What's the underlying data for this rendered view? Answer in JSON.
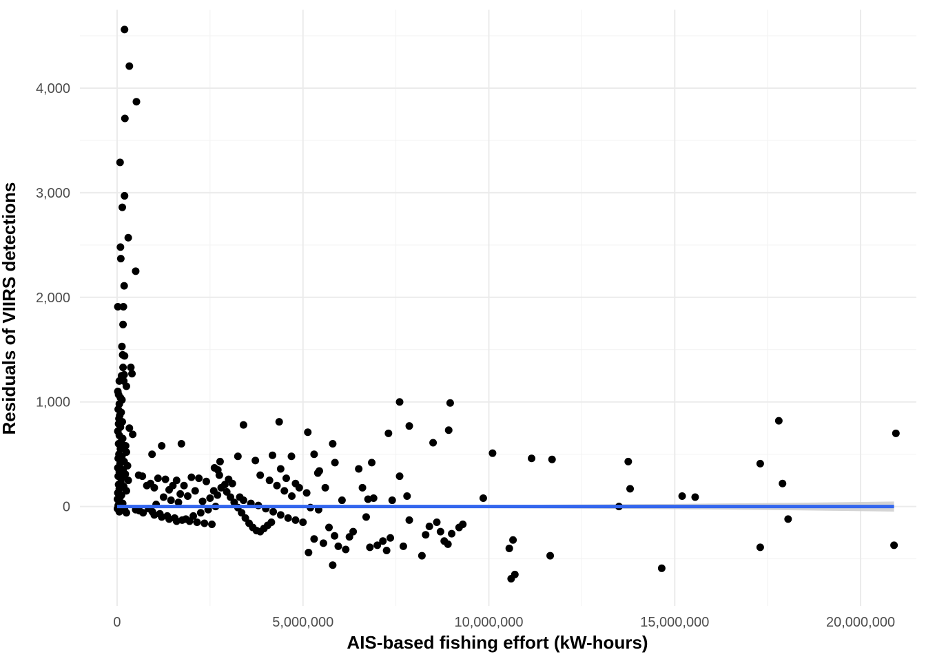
{
  "chart_data": {
    "type": "scatter",
    "title": "",
    "xlabel": "AIS-based fishing effort (kW-hours)",
    "ylabel": "Residuals of VIIRS detections",
    "xlim": [
      -1000000,
      21500000
    ],
    "ylim": [
      -950,
      4750
    ],
    "x_ticks": [
      0,
      5000000,
      10000000,
      15000000,
      20000000
    ],
    "x_tick_labels": [
      "0",
      "5,000,000",
      "10,000,000",
      "15,000,000",
      "20,000,000"
    ],
    "y_ticks": [
      0,
      1000,
      2000,
      3000,
      4000
    ],
    "y_tick_labels": [
      "0",
      "1,000",
      "2,000",
      "3,000",
      "4,000"
    ],
    "grid": true,
    "point_color": "#000000",
    "fit_line_color": "#3366ee",
    "fit_band_color": "#cccccc",
    "fit_line": {
      "x": [
        0,
        20900000
      ],
      "y": [
        0,
        0
      ]
    },
    "fit_band": {
      "x": [
        0,
        5000000,
        10000000,
        15000000,
        18000000,
        20900000
      ],
      "upper": [
        5,
        8,
        15,
        25,
        35,
        48
      ],
      "lower": [
        -5,
        -8,
        -15,
        -25,
        -35,
        -48
      ]
    },
    "points": [
      [
        200000,
        4560
      ],
      [
        330000,
        4210
      ],
      [
        520000,
        3870
      ],
      [
        210000,
        3710
      ],
      [
        80000,
        3290
      ],
      [
        200000,
        2970
      ],
      [
        140000,
        2860
      ],
      [
        300000,
        2570
      ],
      [
        90000,
        2480
      ],
      [
        100000,
        2370
      ],
      [
        500000,
        2250
      ],
      [
        190000,
        2110
      ],
      [
        20000,
        1910
      ],
      [
        170000,
        1910
      ],
      [
        160000,
        1740
      ],
      [
        130000,
        1530
      ],
      [
        150000,
        1450
      ],
      [
        200000,
        1440
      ],
      [
        370000,
        1330
      ],
      [
        160000,
        1330
      ],
      [
        400000,
        1270
      ],
      [
        190000,
        1260
      ],
      [
        120000,
        1250
      ],
      [
        180000,
        1200
      ],
      [
        60000,
        1200
      ],
      [
        250000,
        1150
      ],
      [
        20000,
        1100
      ],
      [
        40000,
        1070
      ],
      [
        90000,
        1040
      ],
      [
        130000,
        1020
      ],
      [
        60000,
        980
      ],
      [
        30000,
        930
      ],
      [
        110000,
        900
      ],
      [
        70000,
        870
      ],
      [
        50000,
        840
      ],
      [
        140000,
        810
      ],
      [
        40000,
        790
      ],
      [
        90000,
        760
      ],
      [
        330000,
        750
      ],
      [
        20000,
        720
      ],
      [
        420000,
        690
      ],
      [
        60000,
        680
      ],
      [
        150000,
        650
      ],
      [
        110000,
        620
      ],
      [
        40000,
        600
      ],
      [
        230000,
        580
      ],
      [
        90000,
        550
      ],
      [
        250000,
        520
      ],
      [
        50000,
        500
      ],
      [
        130000,
        480
      ],
      [
        30000,
        460
      ],
      [
        190000,
        430
      ],
      [
        80000,
        410
      ],
      [
        280000,
        390
      ],
      [
        20000,
        370
      ],
      [
        160000,
        350
      ],
      [
        60000,
        330
      ],
      [
        220000,
        310
      ],
      [
        30000,
        290
      ],
      [
        120000,
        270
      ],
      [
        300000,
        250
      ],
      [
        100000,
        230
      ],
      [
        40000,
        210
      ],
      [
        180000,
        190
      ],
      [
        60000,
        170
      ],
      [
        250000,
        150
      ],
      [
        20000,
        130
      ],
      [
        120000,
        110
      ],
      [
        80000,
        90
      ],
      [
        10000,
        70
      ],
      [
        50000,
        50
      ],
      [
        150000,
        30
      ],
      [
        30000,
        10
      ],
      [
        100000,
        -10
      ],
      [
        200000,
        -30
      ],
      [
        60000,
        -50
      ],
      [
        10000,
        -20
      ],
      [
        250000,
        -60
      ],
      [
        1200000,
        580
      ],
      [
        1730000,
        600
      ],
      [
        940000,
        500
      ],
      [
        580000,
        300
      ],
      [
        680000,
        290
      ],
      [
        1100000,
        270
      ],
      [
        1300000,
        260
      ],
      [
        900000,
        220
      ],
      [
        800000,
        200
      ],
      [
        1000000,
        180
      ],
      [
        1500000,
        200
      ],
      [
        1400000,
        160
      ],
      [
        1600000,
        250
      ],
      [
        1800000,
        200
      ],
      [
        2000000,
        280
      ],
      [
        2200000,
        270
      ],
      [
        2400000,
        240
      ],
      [
        2100000,
        150
      ],
      [
        1700000,
        120
      ],
      [
        1900000,
        100
      ],
      [
        1250000,
        90
      ],
      [
        1450000,
        60
      ],
      [
        1650000,
        40
      ],
      [
        1050000,
        20
      ],
      [
        850000,
        -20
      ],
      [
        950000,
        -50
      ],
      [
        1150000,
        -70
      ],
      [
        1350000,
        -90
      ],
      [
        1550000,
        -110
      ],
      [
        1750000,
        -130
      ],
      [
        1950000,
        -140
      ],
      [
        2150000,
        -150
      ],
      [
        2350000,
        -160
      ],
      [
        2550000,
        -170
      ],
      [
        700000,
        -60
      ],
      [
        600000,
        -40
      ],
      [
        500000,
        -30
      ],
      [
        1000000,
        -80
      ],
      [
        1200000,
        -100
      ],
      [
        1400000,
        -120
      ],
      [
        1600000,
        -140
      ],
      [
        1850000,
        -120
      ],
      [
        2050000,
        -90
      ],
      [
        2250000,
        -60
      ],
      [
        2450000,
        -30
      ],
      [
        2650000,
        0
      ],
      [
        2300000,
        50
      ],
      [
        2500000,
        80
      ],
      [
        2700000,
        110
      ],
      [
        2600000,
        150
      ],
      [
        2800000,
        180
      ],
      [
        2900000,
        210
      ],
      [
        2750000,
        300
      ],
      [
        2620000,
        370
      ],
      [
        2710000,
        350
      ],
      [
        2770000,
        430
      ],
      [
        3000000,
        260
      ],
      [
        3100000,
        220
      ],
      [
        2950000,
        140
      ],
      [
        3050000,
        90
      ],
      [
        3150000,
        40
      ],
      [
        3250000,
        -10
      ],
      [
        3350000,
        -60
      ],
      [
        3450000,
        -110
      ],
      [
        3550000,
        -160
      ],
      [
        3650000,
        -200
      ],
      [
        3750000,
        -230
      ],
      [
        3850000,
        -240
      ],
      [
        3950000,
        -210
      ],
      [
        4050000,
        -180
      ],
      [
        4150000,
        -150
      ],
      [
        3300000,
        90
      ],
      [
        3400000,
        60
      ],
      [
        3600000,
        30
      ],
      [
        3800000,
        10
      ],
      [
        4000000,
        -20
      ],
      [
        4200000,
        -50
      ],
      [
        4400000,
        -80
      ],
      [
        4600000,
        -110
      ],
      [
        4800000,
        -130
      ],
      [
        5000000,
        -150
      ],
      [
        3250000,
        480
      ],
      [
        3400000,
        780
      ],
      [
        3720000,
        440
      ],
      [
        4180000,
        490
      ],
      [
        4360000,
        810
      ],
      [
        4400000,
        360
      ],
      [
        4690000,
        480
      ],
      [
        3850000,
        300
      ],
      [
        4100000,
        250
      ],
      [
        4300000,
        200
      ],
      [
        4500000,
        150
      ],
      [
        4700000,
        100
      ],
      [
        4550000,
        270
      ],
      [
        4800000,
        220
      ],
      [
        4900000,
        180
      ],
      [
        5100000,
        130
      ],
      [
        5200000,
        -10
      ],
      [
        5420000,
        -30
      ],
      [
        5300000,
        500
      ],
      [
        5440000,
        340
      ],
      [
        5130000,
        710
      ],
      [
        5400000,
        320
      ],
      [
        5600000,
        180
      ],
      [
        5800000,
        600
      ],
      [
        5860000,
        420
      ],
      [
        6050000,
        60
      ],
      [
        6500000,
        360
      ],
      [
        6600000,
        180
      ],
      [
        6850000,
        420
      ],
      [
        6900000,
        80
      ],
      [
        6750000,
        70
      ],
      [
        6700000,
        -100
      ],
      [
        7400000,
        60
      ],
      [
        7300000,
        700
      ],
      [
        7600000,
        1000
      ],
      [
        7600000,
        290
      ],
      [
        7800000,
        100
      ],
      [
        7860000,
        -130
      ],
      [
        7860000,
        770
      ],
      [
        8500000,
        610
      ],
      [
        8920000,
        730
      ],
      [
        8960000,
        990
      ],
      [
        8400000,
        -190
      ],
      [
        8600000,
        -150
      ],
      [
        8700000,
        -240
      ],
      [
        8800000,
        -330
      ],
      [
        9000000,
        -260
      ],
      [
        9200000,
        -200
      ],
      [
        9300000,
        -170
      ],
      [
        8900000,
        -360
      ],
      [
        8300000,
        -270
      ],
      [
        8200000,
        -470
      ],
      [
        5150000,
        -440
      ],
      [
        5300000,
        -310
      ],
      [
        5550000,
        -350
      ],
      [
        5700000,
        -200
      ],
      [
        5850000,
        -280
      ],
      [
        5950000,
        -380
      ],
      [
        6150000,
        -410
      ],
      [
        6250000,
        -290
      ],
      [
        6350000,
        -240
      ],
      [
        5800000,
        -560
      ],
      [
        6800000,
        -390
      ],
      [
        7000000,
        -370
      ],
      [
        7150000,
        -330
      ],
      [
        7250000,
        -420
      ],
      [
        7350000,
        -300
      ],
      [
        7700000,
        -380
      ],
      [
        9850000,
        80
      ],
      [
        10100000,
        510
      ],
      [
        11150000,
        460
      ],
      [
        11700000,
        450
      ],
      [
        10550000,
        -400
      ],
      [
        10650000,
        -320
      ],
      [
        10600000,
        -690
      ],
      [
        10700000,
        -650
      ],
      [
        11650000,
        -470
      ],
      [
        13500000,
        0
      ],
      [
        13750000,
        430
      ],
      [
        13800000,
        170
      ],
      [
        15200000,
        100
      ],
      [
        15550000,
        90
      ],
      [
        14650000,
        -590
      ],
      [
        17300000,
        410
      ],
      [
        17800000,
        820
      ],
      [
        17900000,
        220
      ],
      [
        18050000,
        -120
      ],
      [
        17300000,
        -390
      ],
      [
        20950000,
        700
      ],
      [
        20900000,
        -370
      ]
    ]
  }
}
